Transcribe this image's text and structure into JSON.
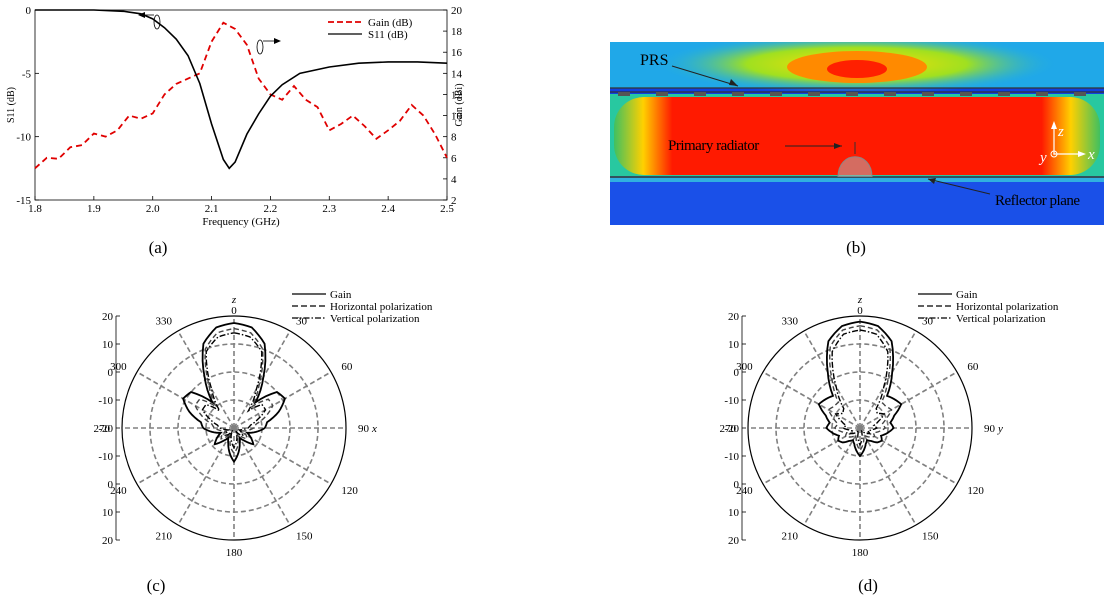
{
  "captions": {
    "a": "(a)",
    "b": "(b)",
    "c": "(c)",
    "d": "(d)"
  },
  "field_map": {
    "labels": {
      "prs": "PRS",
      "primary": "Primary radiator",
      "reflector": "Reflector plane"
    },
    "axes": {
      "z": "z",
      "y": "y",
      "x": "x"
    },
    "colors": {
      "hot": "#ff1a00",
      "cold": "#1040e0",
      "mid": "#ffe000"
    }
  },
  "chart_data": [
    {
      "type": "line",
      "panel": "a",
      "xlabel": "Frequency (GHz)",
      "ylabel": "S11 (dB)",
      "ylabel_right": "Gain (dBi)",
      "xlim": [
        1.8,
        2.5
      ],
      "ylim": [
        -15,
        0
      ],
      "ylim_right": [
        2,
        20
      ],
      "x_ticks": [
        "1.8",
        "1.9",
        "2.0",
        "2.1",
        "2.2",
        "2.3",
        "2.4",
        "2.5"
      ],
      "y_ticks": [
        "-15",
        "-10",
        "-5",
        "0"
      ],
      "y_ticks_right": [
        "2",
        "4",
        "6",
        "8",
        "10",
        "12",
        "14",
        "16",
        "18",
        "20"
      ],
      "legend_position": "top-right",
      "series": [
        {
          "name": "Gain (dB)",
          "axis": "right",
          "color": "#e00000",
          "style": "dashed",
          "x": [
            1.8,
            1.82,
            1.84,
            1.86,
            1.88,
            1.9,
            1.92,
            1.94,
            1.96,
            1.98,
            2.0,
            2.02,
            2.04,
            2.06,
            2.08,
            2.1,
            2.12,
            2.14,
            2.16,
            2.18,
            2.2,
            2.22,
            2.24,
            2.26,
            2.28,
            2.3,
            2.32,
            2.34,
            2.36,
            2.38,
            2.4,
            2.42,
            2.44,
            2.46,
            2.48,
            2.5
          ],
          "y": [
            5.0,
            6.0,
            5.9,
            7.0,
            7.2,
            8.3,
            8.0,
            8.6,
            10.0,
            9.7,
            10.2,
            12.0,
            13.0,
            13.5,
            14.0,
            17.0,
            18.8,
            18.2,
            16.7,
            13.5,
            12.0,
            11.5,
            12.8,
            11.5,
            10.8,
            8.6,
            9.2,
            10.0,
            9.0,
            7.8,
            8.6,
            9.5,
            11.0,
            10.0,
            8.2,
            6.0
          ]
        },
        {
          "name": "S11 (dB)",
          "axis": "left",
          "color": "#000000",
          "style": "solid",
          "x": [
            1.8,
            1.85,
            1.9,
            1.95,
            1.98,
            2.0,
            2.02,
            2.04,
            2.06,
            2.08,
            2.1,
            2.12,
            2.13,
            2.14,
            2.16,
            2.18,
            2.2,
            2.22,
            2.25,
            2.3,
            2.35,
            2.4,
            2.45,
            2.5
          ],
          "y": [
            0,
            0,
            0,
            -0.1,
            -0.3,
            -0.7,
            -1.4,
            -2.3,
            -3.6,
            -5.8,
            -9.0,
            -11.8,
            -12.5,
            -12.0,
            -9.8,
            -8.2,
            -6.8,
            -5.9,
            -5.0,
            -4.5,
            -4.2,
            -4.1,
            -4.1,
            -4.2
          ]
        }
      ]
    },
    {
      "type": "polar",
      "panel": "c",
      "angle_ticks": [
        "0",
        "30",
        "60",
        "90",
        "120",
        "150",
        "180",
        "210",
        "240",
        "270",
        "300",
        "330"
      ],
      "radial_ticks": [
        "20",
        "10",
        "0",
        "-10",
        "-20",
        "-10",
        "0",
        "10",
        "20"
      ],
      "rlim_dB": [
        -20,
        20
      ],
      "top_axis_label": "z",
      "right_axis_label": "x",
      "legend_position": "top-right",
      "series": [
        {
          "name": "Gain",
          "style": "solid",
          "angles": [
            0,
            10,
            20,
            30,
            40,
            50,
            60,
            70,
            80,
            90,
            100,
            110,
            120,
            130,
            140,
            150,
            160,
            170,
            180,
            190,
            200,
            210,
            220,
            230,
            240,
            250,
            260,
            270,
            280,
            290,
            300,
            310,
            320,
            330,
            340,
            350
          ],
          "values": [
            17.5,
            16.5,
            12,
            1,
            -8,
            0,
            1,
            -3,
            -8,
            -9,
            -12,
            -15,
            -13,
            -11,
            -14,
            -16,
            -14,
            -11,
            -8,
            -11,
            -14,
            -16,
            -14,
            -11,
            -13,
            -15,
            -12,
            -9,
            -8,
            -3,
            1,
            0,
            -8,
            1,
            12,
            16.5
          ]
        },
        {
          "name": "Horizontal polarization",
          "style": "dashed",
          "angles": [
            0,
            10,
            20,
            30,
            40,
            50,
            60,
            70,
            80,
            90,
            100,
            110,
            120,
            130,
            140,
            150,
            160,
            170,
            180,
            190,
            200,
            210,
            220,
            230,
            240,
            250,
            260,
            270,
            280,
            290,
            300,
            310,
            320,
            330,
            340,
            350
          ],
          "values": [
            15.5,
            14.5,
            10,
            -2,
            -10,
            -4,
            -4,
            -8,
            -12,
            -13,
            -15,
            -17,
            -15,
            -14,
            -16,
            -18,
            -16,
            -13,
            -11,
            -13,
            -16,
            -18,
            -16,
            -14,
            -15,
            -17,
            -15,
            -13,
            -12,
            -8,
            -4,
            -4,
            -10,
            -2,
            10,
            14.5
          ]
        },
        {
          "name": "Vertical polarization",
          "style": "dash-dot",
          "angles": [
            0,
            10,
            20,
            30,
            40,
            50,
            60,
            70,
            80,
            90,
            100,
            110,
            120,
            130,
            140,
            150,
            160,
            170,
            180,
            190,
            200,
            210,
            220,
            230,
            240,
            250,
            260,
            270,
            280,
            290,
            300,
            310,
            320,
            330,
            340,
            350
          ],
          "values": [
            14,
            13,
            9,
            -4,
            -12,
            -7,
            -7,
            -11,
            -14,
            -15,
            -17,
            -18,
            -17,
            -16,
            -17,
            -19,
            -17,
            -15,
            -13,
            -15,
            -17,
            -19,
            -17,
            -16,
            -17,
            -18,
            -17,
            -15,
            -14,
            -11,
            -7,
            -7,
            -12,
            -4,
            9,
            13
          ]
        }
      ]
    },
    {
      "type": "polar",
      "panel": "d",
      "angle_ticks": [
        "0",
        "30",
        "60",
        "90",
        "120",
        "150",
        "180",
        "210",
        "240",
        "270",
        "300",
        "330"
      ],
      "radial_ticks": [
        "20",
        "10",
        "0",
        "-10",
        "-20",
        "-10",
        "0",
        "10",
        "20"
      ],
      "rlim_dB": [
        -20,
        20
      ],
      "top_axis_label": "z",
      "right_axis_label": "y",
      "legend_position": "top-right",
      "series": [
        {
          "name": "Gain",
          "style": "solid",
          "angles": [
            0,
            10,
            20,
            30,
            40,
            50,
            60,
            70,
            80,
            90,
            100,
            110,
            120,
            130,
            140,
            150,
            160,
            170,
            180,
            190,
            200,
            210,
            220,
            230,
            240,
            250,
            260,
            270,
            280,
            290,
            300,
            310,
            320,
            330,
            340,
            350
          ],
          "values": [
            18,
            17,
            13,
            3,
            -5,
            -4,
            -3,
            -7,
            -9,
            -8,
            -10,
            -12,
            -11,
            -12,
            -14,
            -15,
            -14,
            -12,
            -10,
            -12,
            -14,
            -15,
            -14,
            -12,
            -11,
            -12,
            -10,
            -8,
            -9,
            -7,
            -3,
            -4,
            -5,
            3,
            13,
            17
          ]
        },
        {
          "name": "Horizontal polarization",
          "style": "dashed",
          "angles": [
            0,
            10,
            20,
            30,
            40,
            50,
            60,
            70,
            80,
            90,
            100,
            110,
            120,
            130,
            140,
            150,
            160,
            170,
            180,
            190,
            200,
            210,
            220,
            230,
            240,
            250,
            260,
            270,
            280,
            290,
            300,
            310,
            320,
            330,
            340,
            350
          ],
          "values": [
            16.5,
            15.5,
            11,
            0,
            -8,
            -8,
            -7,
            -10,
            -12,
            -11,
            -13,
            -15,
            -14,
            -15,
            -16,
            -17,
            -16,
            -14,
            -12,
            -14,
            -16,
            -17,
            -16,
            -15,
            -14,
            -15,
            -13,
            -11,
            -12,
            -10,
            -7,
            -8,
            -8,
            0,
            11,
            15.5
          ]
        },
        {
          "name": "Vertical polarization",
          "style": "dash-dot",
          "angles": [
            0,
            10,
            20,
            30,
            40,
            50,
            60,
            70,
            80,
            90,
            100,
            110,
            120,
            130,
            140,
            150,
            160,
            170,
            180,
            190,
            200,
            210,
            220,
            230,
            240,
            250,
            260,
            270,
            280,
            290,
            300,
            310,
            320,
            330,
            340,
            350
          ],
          "values": [
            15,
            14,
            9,
            -3,
            -11,
            -12,
            -10,
            -13,
            -15,
            -14,
            -16,
            -17,
            -16,
            -17,
            -18,
            -19,
            -18,
            -16,
            -14,
            -16,
            -18,
            -19,
            -18,
            -17,
            -16,
            -17,
            -16,
            -14,
            -15,
            -13,
            -10,
            -12,
            -11,
            -3,
            9,
            14
          ]
        }
      ]
    }
  ]
}
